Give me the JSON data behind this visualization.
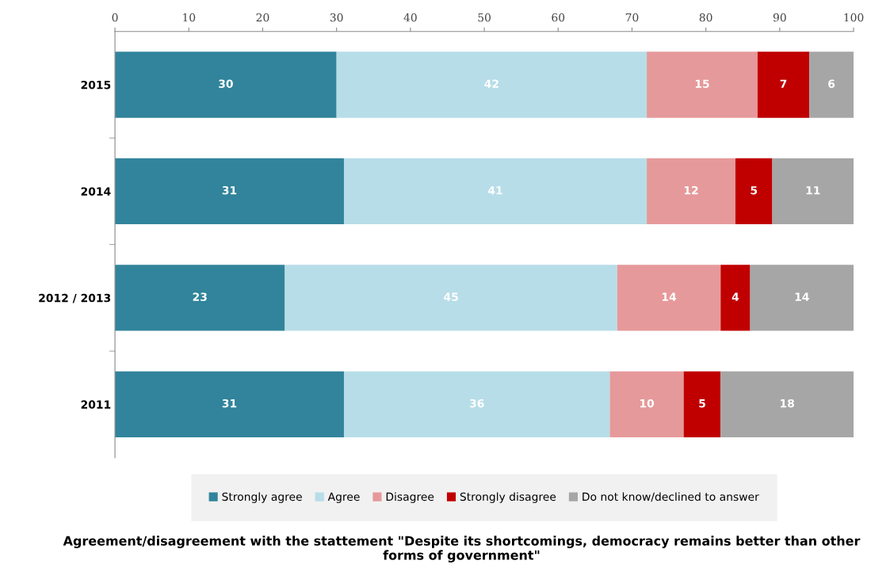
{
  "chart_data": {
    "type": "bar",
    "orientation": "horizontal",
    "stacked": true,
    "title": "Agreement/disagreement with the stattement \"Despite its shortcomings, democracy remains better than other forms of government\"",
    "categories": [
      "2015",
      "2014",
      "2012 / 2013",
      "2011"
    ],
    "series": [
      {
        "name": "Strongly agree",
        "color": "#31849b",
        "values": [
          30,
          31,
          23,
          31
        ]
      },
      {
        "name": "Agree",
        "color": "#b7dde8",
        "values": [
          42,
          41,
          45,
          36
        ]
      },
      {
        "name": "Disagree",
        "color": "#e6999a",
        "values": [
          15,
          12,
          14,
          10
        ]
      },
      {
        "name": "Strongly disagree",
        "color": "#c00000",
        "values": [
          7,
          5,
          4,
          5
        ]
      },
      {
        "name": "Do not know/declined to answer",
        "color": "#a6a6a6",
        "values": [
          6,
          11,
          14,
          18
        ]
      }
    ],
    "xlim": [
      0,
      100
    ],
    "xticks": [
      0,
      10,
      20,
      30,
      40,
      50,
      60,
      70,
      80,
      90,
      100
    ],
    "data_labels": true,
    "grid": false,
    "legend": "bottom"
  }
}
